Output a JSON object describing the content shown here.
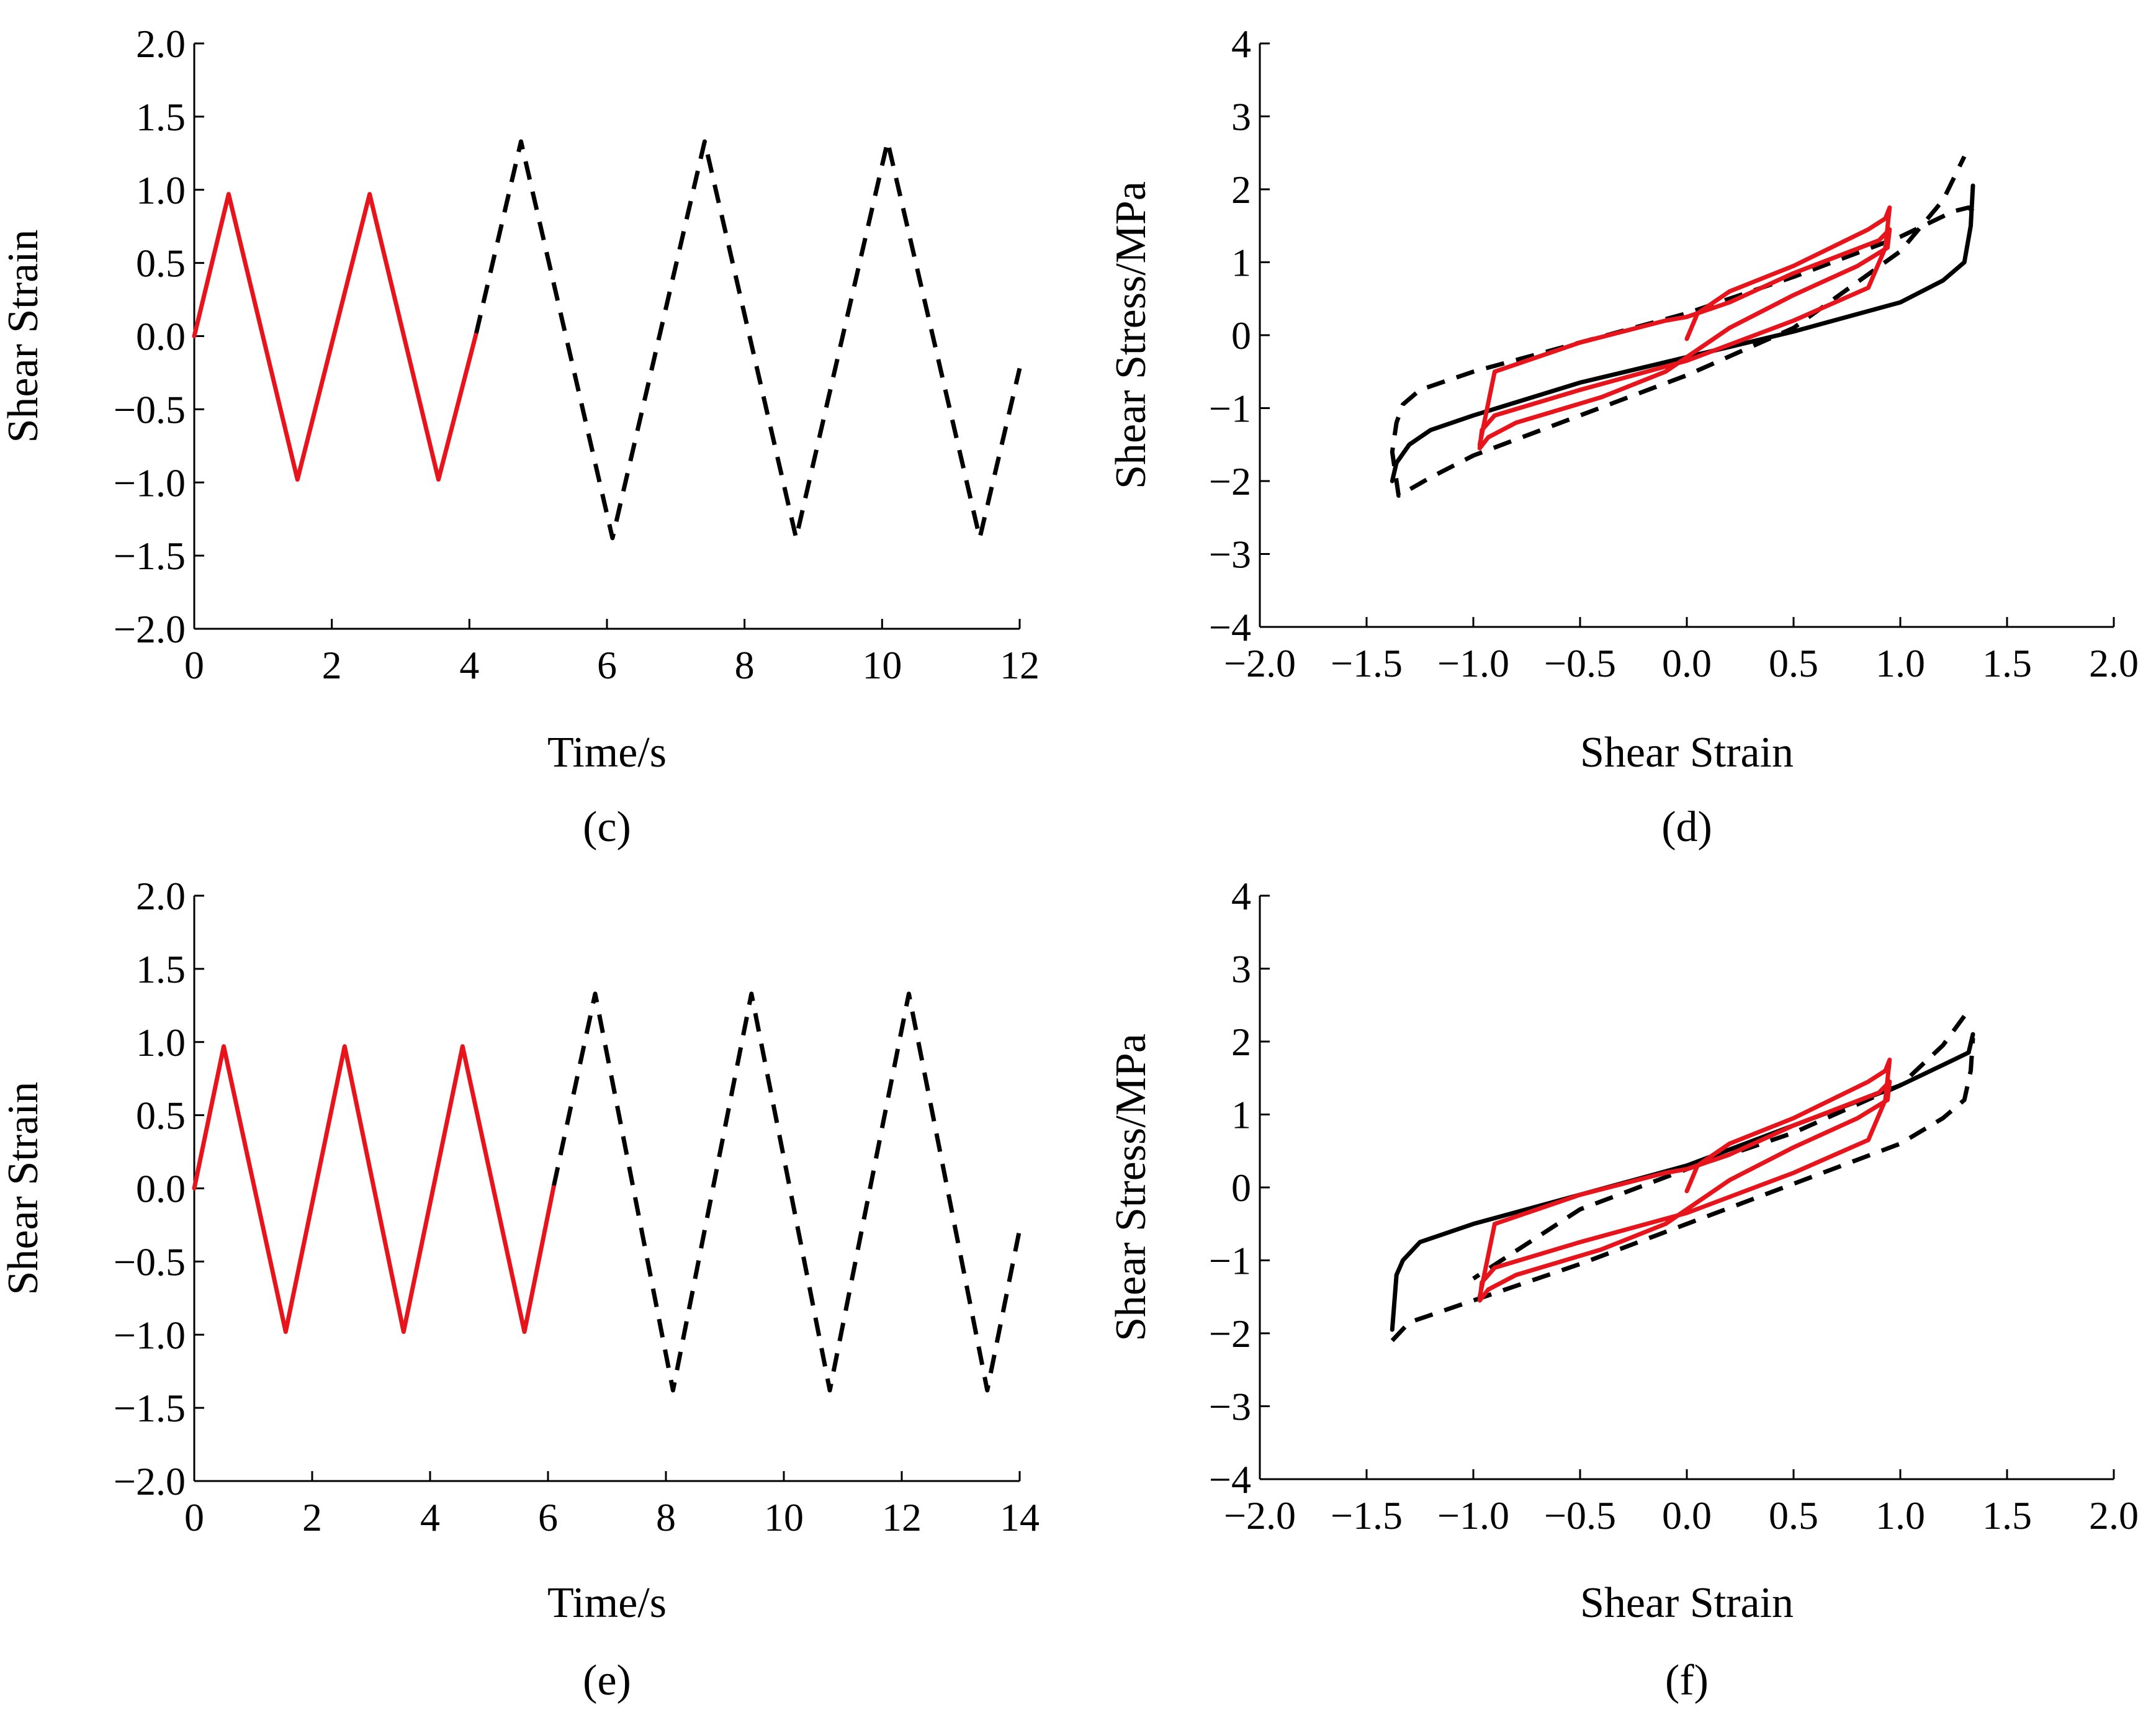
{
  "colors": {
    "series_red": "#e8141c",
    "series_black": "#000000",
    "axis": "#000000"
  },
  "chart_data": [
    {
      "panel": "c",
      "panel_label": "(c)",
      "type": "line",
      "xlabel": "Time/s",
      "ylabel": "Shear Strain",
      "xlim": [
        0,
        12
      ],
      "ylim": [
        -2.0,
        2.0
      ],
      "xticks": [
        "0",
        "2",
        "4",
        "6",
        "8",
        "10",
        "12"
      ],
      "yticks": [
        "2.0",
        "1.5",
        "1.0",
        "0.5",
        "0.0",
        "−0.5",
        "−1.0",
        "−1.5",
        "−2.0"
      ],
      "grid": false,
      "series": [
        {
          "name": "solid red",
          "style": "solid",
          "color": "#e8141c",
          "x": [
            0,
            0.5,
            1.5,
            2.55,
            3.55,
            4.1
          ],
          "y": [
            0,
            0.97,
            -0.98,
            0.97,
            -0.98,
            0.02
          ]
        },
        {
          "name": "dashed black",
          "style": "dashed",
          "color": "#000000",
          "x": [
            4.1,
            4.75,
            6.08,
            7.42,
            8.75,
            10.08,
            11.42,
            12.0
          ],
          "y": [
            0.02,
            1.33,
            -1.38,
            1.33,
            -1.38,
            1.33,
            -1.38,
            -0.22
          ]
        }
      ]
    },
    {
      "panel": "d",
      "panel_label": "(d)",
      "type": "line",
      "xlabel": "Shear Strain",
      "ylabel": "Shear Stress/MPa",
      "xlim": [
        -2.0,
        2.0
      ],
      "ylim": [
        -4,
        4
      ],
      "xticks": [
        "−2.0",
        "−1.5",
        "−1.0",
        "−0.5",
        "0.0",
        "0.5",
        "1.0",
        "1.5",
        "2.0"
      ],
      "yticks": [
        "4",
        "3",
        "2",
        "1",
        "0",
        "−1",
        "−2",
        "−3",
        "−4"
      ],
      "grid": false,
      "series": [
        {
          "name": "solid black loop",
          "style": "solid",
          "color": "#000000",
          "x": [
            -1.38,
            -1.36,
            -1.3,
            -1.2,
            -1.0,
            -0.5,
            0.0,
            0.5,
            1.0,
            1.2,
            1.3,
            1.33,
            1.34
          ],
          "y": [
            -2.0,
            -1.75,
            -1.5,
            -1.3,
            -1.1,
            -0.65,
            -0.3,
            0.05,
            0.45,
            0.75,
            1.0,
            1.5,
            2.05
          ]
        },
        {
          "name": "dashed black loop",
          "style": "dashed",
          "color": "#000000",
          "x": [
            1.34,
            1.32,
            1.25,
            1.0,
            0.5,
            0.0,
            -0.5,
            -1.0,
            -1.25,
            -1.33,
            -1.36,
            -1.38,
            -1.35,
            -1.2,
            -1.0,
            -0.5,
            0.0,
            0.5,
            1.0,
            1.2,
            1.3
          ],
          "y": [
            1.7,
            1.75,
            1.7,
            1.35,
            0.8,
            0.3,
            -0.1,
            -0.5,
            -0.75,
            -0.95,
            -1.2,
            -1.6,
            -2.2,
            -1.95,
            -1.65,
            -1.1,
            -0.55,
            0.1,
            1.15,
            1.85,
            2.45
          ]
        },
        {
          "name": "solid red loop",
          "style": "solid",
          "color": "#e8141c",
          "x": [
            0.0,
            0.05,
            0.2,
            0.5,
            0.85,
            0.93,
            0.95,
            0.93,
            0.85,
            0.5,
            0.0,
            -0.5,
            -0.9,
            -0.96,
            -0.97,
            -0.93,
            -0.8,
            -0.4,
            -0.1,
            0.0,
            0.2,
            0.5,
            0.8,
            0.94,
            0.95,
            0.9,
            0.5,
            0.2,
            0.0,
            -0.1,
            -0.5,
            -0.9,
            -0.97
          ],
          "y": [
            -0.05,
            0.3,
            0.6,
            0.95,
            1.45,
            1.6,
            1.75,
            1.2,
            0.65,
            0.2,
            -0.35,
            -0.75,
            -1.1,
            -1.3,
            -1.55,
            -1.4,
            -1.2,
            -0.85,
            -0.5,
            -0.3,
            0.1,
            0.55,
            0.95,
            1.2,
            1.45,
            1.3,
            0.85,
            0.45,
            0.25,
            0.2,
            -0.1,
            -0.5,
            -1.5
          ]
        }
      ]
    },
    {
      "panel": "e",
      "panel_label": "(e)",
      "type": "line",
      "xlabel": "Time/s",
      "ylabel": "Shear Strain",
      "xlim": [
        0,
        14
      ],
      "ylim": [
        -2.0,
        2.0
      ],
      "xticks": [
        "0",
        "2",
        "4",
        "6",
        "8",
        "10",
        "12",
        "14"
      ],
      "yticks": [
        "2.0",
        "1.5",
        "1.0",
        "0.5",
        "0.0",
        "−0.5",
        "−1.0",
        "−1.5",
        "−2.0"
      ],
      "grid": false,
      "series": [
        {
          "name": "solid red",
          "style": "solid",
          "color": "#e8141c",
          "x": [
            0,
            0.5,
            1.55,
            2.55,
            3.55,
            4.55,
            5.6,
            6.1
          ],
          "y": [
            0,
            0.97,
            -0.98,
            0.97,
            -0.98,
            0.97,
            -0.98,
            0.02
          ]
        },
        {
          "name": "dashed black",
          "style": "dashed",
          "color": "#000000",
          "x": [
            6.1,
            6.8,
            8.12,
            9.45,
            10.78,
            12.12,
            13.45,
            14.0
          ],
          "y": [
            0.02,
            1.33,
            -1.38,
            1.33,
            -1.38,
            1.33,
            -1.38,
            -0.28
          ]
        }
      ]
    },
    {
      "panel": "f",
      "panel_label": "(f)",
      "type": "line",
      "xlabel": "Shear Strain",
      "ylabel": "Shear Stress/MPa",
      "xlim": [
        -2.0,
        2.0
      ],
      "ylim": [
        -4,
        4
      ],
      "xticks": [
        "−2.0",
        "−1.5",
        "−1.0",
        "−0.5",
        "0.0",
        "0.5",
        "1.0",
        "1.5",
        "2.0"
      ],
      "yticks": [
        "4",
        "3",
        "2",
        "1",
        "0",
        "−1",
        "−2",
        "−3",
        "−4"
      ],
      "grid": false,
      "series": [
        {
          "name": "solid black loop",
          "style": "solid",
          "color": "#000000",
          "x": [
            1.34,
            1.32,
            1.25,
            1.0,
            0.5,
            0.0,
            -0.5,
            -1.0,
            -1.25,
            -1.33,
            -1.36,
            -1.38
          ],
          "y": [
            2.1,
            1.85,
            1.75,
            1.4,
            0.85,
            0.3,
            -0.1,
            -0.5,
            -0.75,
            -1.0,
            -1.2,
            -1.95
          ]
        },
        {
          "name": "dashed black loop",
          "style": "dashed",
          "color": "#000000",
          "x": [
            -1.38,
            -1.3,
            -1.0,
            -0.5,
            0.0,
            0.5,
            1.0,
            1.2,
            1.3,
            1.33,
            1.34
          ],
          "y": [
            -2.1,
            -1.85,
            -1.55,
            -1.05,
            -0.5,
            0.05,
            0.6,
            0.95,
            1.2,
            1.6,
            2.05
          ]
        },
        {
          "name": "dashed black upper",
          "style": "dashed",
          "color": "#000000",
          "x": [
            1.3,
            1.2,
            1.0,
            0.5,
            0.0,
            -0.5,
            -1.0
          ],
          "y": [
            2.35,
            1.95,
            1.4,
            0.75,
            0.25,
            -0.3,
            -1.25
          ]
        },
        {
          "name": "solid red loop",
          "style": "solid",
          "color": "#e8141c",
          "x": [
            0.0,
            0.05,
            0.2,
            0.5,
            0.85,
            0.93,
            0.95,
            0.93,
            0.85,
            0.5,
            0.0,
            -0.5,
            -0.9,
            -0.96,
            -0.97,
            -0.93,
            -0.8,
            -0.4,
            -0.1,
            0.0,
            0.2,
            0.5,
            0.8,
            0.94,
            0.95,
            0.9,
            0.5,
            0.2,
            0.0,
            -0.1,
            -0.5,
            -0.9,
            -0.97
          ],
          "y": [
            -0.05,
            0.3,
            0.6,
            0.95,
            1.45,
            1.6,
            1.75,
            1.2,
            0.65,
            0.2,
            -0.35,
            -0.75,
            -1.1,
            -1.3,
            -1.55,
            -1.4,
            -1.2,
            -0.85,
            -0.5,
            -0.3,
            0.1,
            0.55,
            0.95,
            1.2,
            1.45,
            1.3,
            0.85,
            0.45,
            0.25,
            0.2,
            -0.1,
            -0.5,
            -1.5
          ]
        }
      ]
    }
  ]
}
